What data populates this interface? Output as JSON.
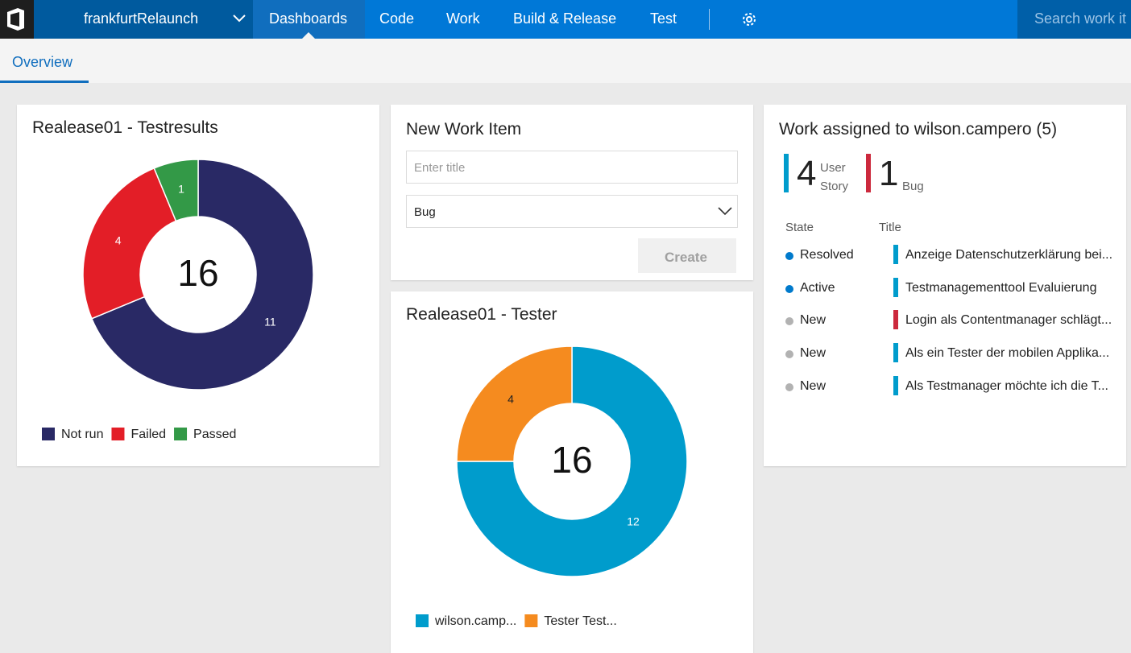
{
  "nav": {
    "project": "frankfurtRelaunch",
    "items": [
      "Dashboards",
      "Code",
      "Work",
      "Build & Release",
      "Test"
    ],
    "search_placeholder": "Search work it"
  },
  "subnav": {
    "tab": "Overview"
  },
  "new_work_item": {
    "title": "New Work Item",
    "input_placeholder": "Enter title",
    "type": "Bug",
    "button": "Create"
  },
  "work_assigned": {
    "title": "Work assigned to wilson.campero (5)",
    "counts": [
      {
        "count": 4,
        "label": "User Story",
        "color": "#009ccc"
      },
      {
        "count": 1,
        "label": "Bug",
        "color": "#cc293d"
      }
    ],
    "columns": [
      "State",
      "Title"
    ],
    "rows": [
      {
        "state": "Resolved",
        "state_color": "#007acc",
        "title": "Anzeige Datenschutzerklärung bei...",
        "type_color": "#009ccc"
      },
      {
        "state": "Active",
        "state_color": "#007acc",
        "title": "Testmanagementtool Evaluierung",
        "type_color": "#009ccc"
      },
      {
        "state": "New",
        "state_color": "#b2b2b2",
        "title": "Login als Contentmanager schlägt...",
        "type_color": "#cc293d"
      },
      {
        "state": "New",
        "state_color": "#b2b2b2",
        "title": "Als ein Tester der mobilen Applika...",
        "type_color": "#009ccc"
      },
      {
        "state": "New",
        "state_color": "#b2b2b2",
        "title": "Als Testmanager möchte ich die T...",
        "type_color": "#009ccc"
      }
    ]
  },
  "chart_data": [
    {
      "type": "pie",
      "donut": true,
      "title": "Realease01 - Testresults",
      "categories": [
        "Not run",
        "Failed",
        "Passed"
      ],
      "values": [
        11,
        4,
        1
      ],
      "colors": [
        "#292965",
        "#e31e27",
        "#339947"
      ],
      "center_label": "16"
    },
    {
      "type": "pie",
      "donut": true,
      "title": "Realease01 - Tester",
      "categories": [
        "wilson.camp...",
        "Tester Test..."
      ],
      "values": [
        12,
        4
      ],
      "colors": [
        "#009ccc",
        "#f58b1f"
      ],
      "center_label": "16"
    }
  ]
}
